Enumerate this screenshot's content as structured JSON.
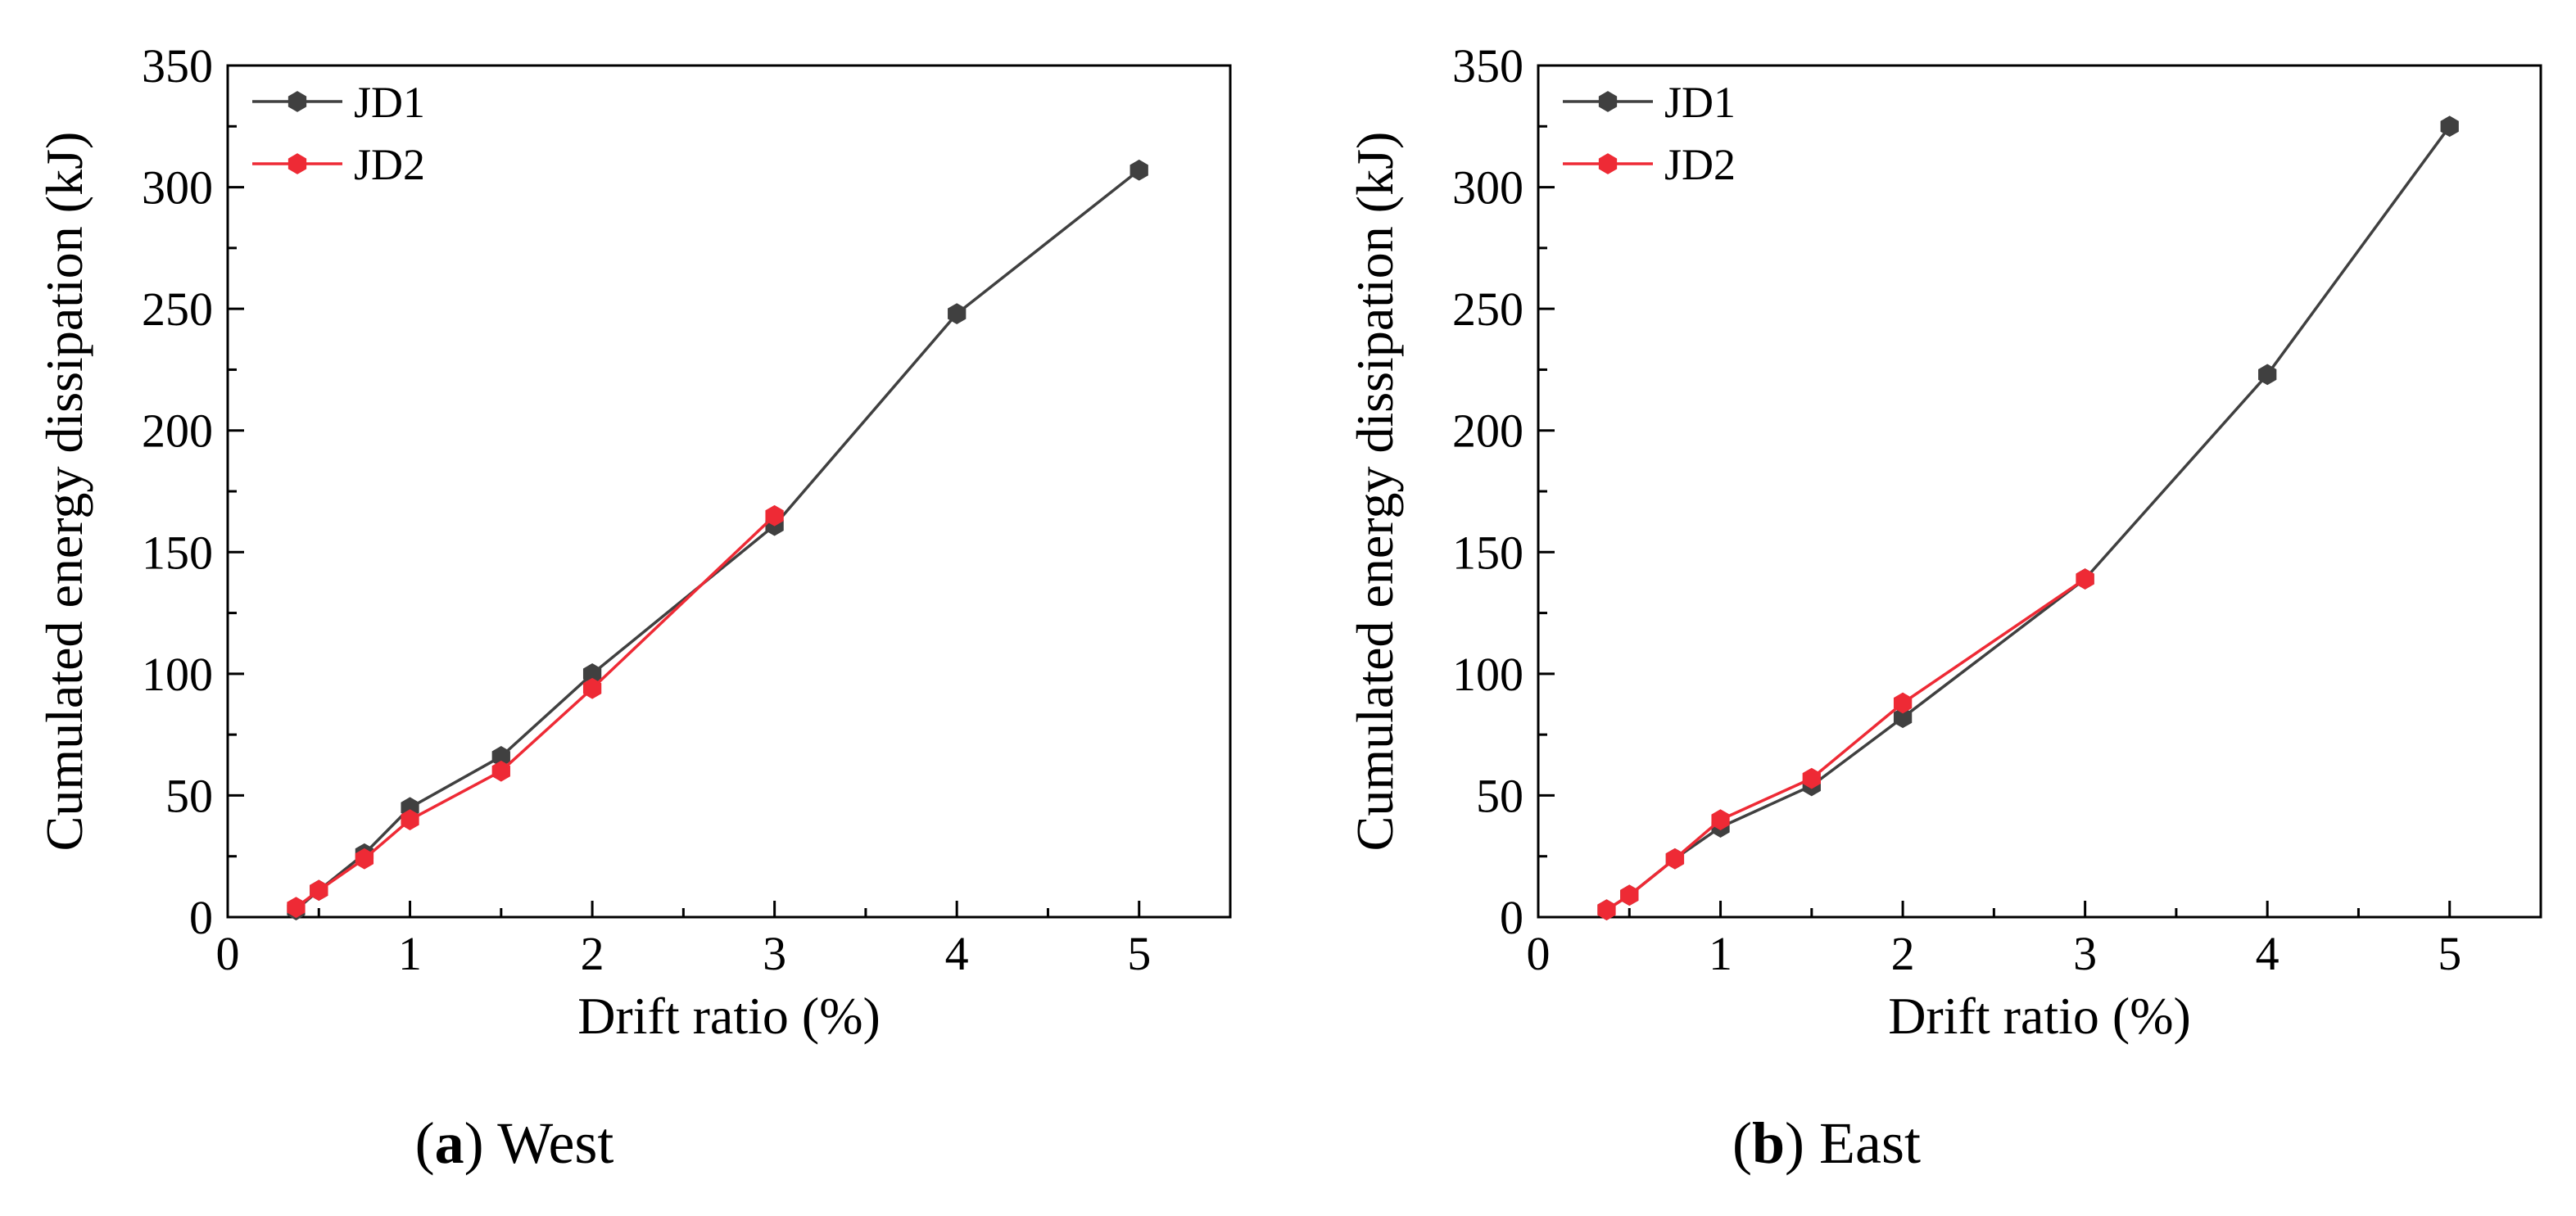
{
  "figure": {
    "panels": [
      {
        "caption_prefix": "(",
        "caption_letter": "a",
        "caption_suffix": ") ",
        "caption_text": "West"
      },
      {
        "caption_prefix": "(",
        "caption_letter": "b",
        "caption_suffix": ") ",
        "caption_text": "East"
      }
    ]
  },
  "colors": {
    "JD1": "#404040",
    "JD2": "#ee2a35",
    "axis": "#000000"
  },
  "chart_data": [
    {
      "type": "line",
      "title": "West",
      "xlabel": "Drift ratio (%)",
      "ylabel": "Cumulated energy dissipation (kJ)",
      "xlim": [
        0,
        5.5
      ],
      "ylim": [
        0,
        350
      ],
      "xticks": [
        0,
        1,
        2,
        3,
        4,
        5
      ],
      "yticks": [
        0,
        50,
        100,
        150,
        200,
        250,
        300,
        350
      ],
      "legend_position": "top-left",
      "series": [
        {
          "name": "JD1",
          "color": "#404040",
          "marker": "hexagon",
          "x": [
            0.375,
            0.5,
            0.75,
            1,
            1.5,
            2,
            3,
            4,
            5
          ],
          "y": [
            3,
            11,
            26,
            45,
            66,
            100,
            161,
            248,
            307
          ]
        },
        {
          "name": "JD2",
          "color": "#ee2a35",
          "marker": "hexagon",
          "x": [
            0.375,
            0.5,
            0.75,
            1,
            1.5,
            2,
            3
          ],
          "y": [
            4,
            11,
            24,
            40,
            60,
            94,
            165
          ]
        }
      ]
    },
    {
      "type": "line",
      "title": "East",
      "xlabel": "Drift ratio (%)",
      "ylabel": "Cumulated energy dissipation (kJ)",
      "xlim": [
        0,
        5.5
      ],
      "ylim": [
        0,
        350
      ],
      "xticks": [
        0,
        1,
        2,
        3,
        4,
        5
      ],
      "yticks": [
        0,
        50,
        100,
        150,
        200,
        250,
        300,
        350
      ],
      "legend_position": "top-left",
      "series": [
        {
          "name": "JD1",
          "color": "#404040",
          "marker": "hexagon",
          "x": [
            0.375,
            0.5,
            0.75,
            1,
            1.5,
            2,
            3,
            4,
            5
          ],
          "y": [
            3,
            9,
            24,
            37,
            54,
            82,
            139,
            223,
            325
          ]
        },
        {
          "name": "JD2",
          "color": "#ee2a35",
          "marker": "hexagon",
          "x": [
            0.375,
            0.5,
            0.75,
            1,
            1.5,
            2,
            3
          ],
          "y": [
            3,
            9,
            24,
            40,
            57,
            88,
            139
          ]
        }
      ]
    }
  ]
}
